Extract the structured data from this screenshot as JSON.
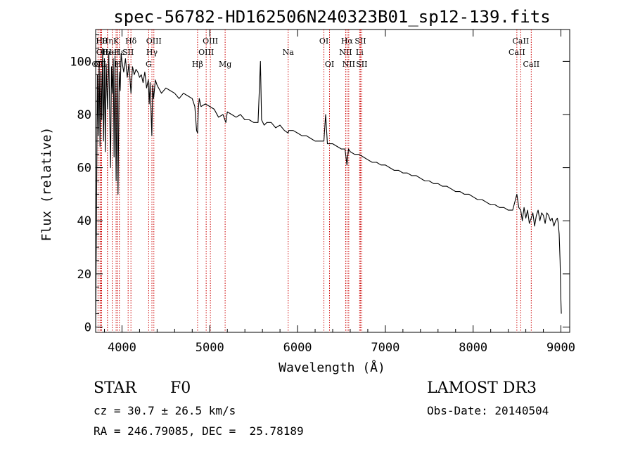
{
  "chart_data": {
    "type": "line",
    "title": "spec-56782-HD162506N240323B01_sp12-139.fits",
    "xlabel": "Wavelength (Å)",
    "ylabel": "Flux (relative)",
    "xlim": [
      3700,
      9100
    ],
    "ylim": [
      -2,
      112
    ],
    "xticks": [
      4000,
      5000,
      6000,
      7000,
      8000,
      9000
    ],
    "yticks": [
      0,
      20,
      40,
      60,
      80,
      100
    ],
    "series": [
      {
        "name": "spectrum",
        "x": [
          3700,
          3710,
          3720,
          3730,
          3740,
          3750,
          3760,
          3770,
          3780,
          3790,
          3800,
          3810,
          3820,
          3835,
          3850,
          3870,
          3880,
          3890,
          3900,
          3910,
          3920,
          3933,
          3945,
          3955,
          3968,
          3980,
          3990,
          4000,
          4020,
          4040,
          4060,
          4080,
          4102,
          4120,
          4140,
          4160,
          4180,
          4200,
          4220,
          4240,
          4260,
          4280,
          4300,
          4310,
          4320,
          4340,
          4350,
          4360,
          4380,
          4400,
          4450,
          4500,
          4550,
          4600,
          4650,
          4700,
          4750,
          4800,
          4830,
          4850,
          4861,
          4870,
          4880,
          4900,
          4950,
          5000,
          5050,
          5100,
          5150,
          5183,
          5200,
          5250,
          5300,
          5350,
          5400,
          5450,
          5500,
          5550,
          5577,
          5590,
          5620,
          5650,
          5700,
          5750,
          5800,
          5850,
          5893,
          5900,
          5950,
          6000,
          6050,
          6100,
          6150,
          6200,
          6250,
          6300,
          6320,
          6340,
          6400,
          6450,
          6500,
          6540,
          6563,
          6580,
          6600,
          6650,
          6700,
          6750,
          6800,
          6850,
          6900,
          6950,
          7000,
          7050,
          7100,
          7150,
          7200,
          7250,
          7300,
          7350,
          7400,
          7450,
          7500,
          7550,
          7600,
          7650,
          7700,
          7750,
          7800,
          7850,
          7900,
          7950,
          8000,
          8050,
          8100,
          8150,
          8200,
          8250,
          8300,
          8350,
          8400,
          8450,
          8498,
          8520,
          8542,
          8560,
          8580,
          8600,
          8620,
          8640,
          8662,
          8680,
          8700,
          8720,
          8740,
          8760,
          8780,
          8800,
          8820,
          8840,
          8860,
          8880,
          8900,
          8920,
          8940,
          8960,
          8970,
          8980,
          8990,
          9000,
          9005
        ],
        "y": [
          0,
          43,
          95,
          72,
          100,
          68,
          96,
          78,
          105,
          70,
          101,
          66,
          99,
          82,
          103,
          60,
          98,
          88,
          101,
          64,
          102,
          55,
          100,
          50,
          96,
          89,
          103,
          100,
          96,
          101,
          94,
          99,
          88,
          98,
          95,
          97,
          96,
          94,
          95,
          92,
          96,
          90,
          93,
          84,
          92,
          72,
          91,
          86,
          93,
          91,
          88,
          90,
          89,
          88,
          86,
          88,
          87,
          86,
          83,
          74,
          73,
          82,
          86,
          83,
          84,
          83,
          82,
          79,
          80,
          77,
          81,
          80,
          79,
          80,
          78,
          78,
          77,
          77,
          100,
          78,
          76,
          77,
          77,
          75,
          76,
          74,
          73,
          74,
          74,
          73,
          72,
          72,
          71,
          70,
          70,
          70,
          80,
          69,
          69,
          68,
          67,
          67,
          61,
          67,
          66,
          65,
          65,
          64,
          63,
          62,
          62,
          61,
          61,
          60,
          59,
          59,
          58,
          58,
          57,
          57,
          56,
          55,
          55,
          54,
          54,
          53,
          53,
          52,
          51,
          51,
          50,
          50,
          49,
          48,
          48,
          47,
          46,
          46,
          45,
          45,
          44,
          44,
          50,
          45,
          44,
          40,
          45,
          41,
          44,
          39,
          41,
          43,
          38,
          42,
          44,
          40,
          43,
          42,
          39,
          43,
          42,
          40,
          41,
          38,
          40,
          41,
          39,
          35,
          25,
          10,
          5
        ]
      }
    ],
    "lines": [
      {
        "x": 3727,
        "row": 2,
        "label": "OII"
      },
      {
        "x": 3750,
        "row": 2,
        "label": "OII"
      },
      {
        "x": 3768,
        "row": 0,
        "label": "Hθ"
      },
      {
        "x": 3834,
        "row": 0,
        "label": "Hη"
      },
      {
        "x": 3760,
        "row": 1,
        "label": "OI"
      },
      {
        "x": 3835,
        "row": 1,
        "label": "He"
      },
      {
        "x": 3889,
        "row": 1,
        "label": "HeI"
      },
      {
        "x": 3933,
        "row": 0,
        "label": "K"
      },
      {
        "x": 3950,
        "row": 2,
        "label": "H"
      },
      {
        "x": 3970,
        "row": 1,
        "label": "Hε"
      },
      {
        "x": 4070,
        "row": 1,
        "label": "SII"
      },
      {
        "x": 4102,
        "row": 0,
        "label": "Hδ"
      },
      {
        "x": 4304,
        "row": 2,
        "label": "G"
      },
      {
        "x": 4341,
        "row": 1,
        "label": "Hγ"
      },
      {
        "x": 4363,
        "row": 0,
        "label": "OIII"
      },
      {
        "x": 4861,
        "row": 2,
        "label": "Hβ"
      },
      {
        "x": 4959,
        "row": 1,
        "label": "OIII"
      },
      {
        "x": 5007,
        "row": 0,
        "label": "OIII"
      },
      {
        "x": 5175,
        "row": 2,
        "label": "Mg"
      },
      {
        "x": 5893,
        "row": 1,
        "label": "Na"
      },
      {
        "x": 6300,
        "row": 0,
        "label": "OI"
      },
      {
        "x": 6364,
        "row": 2,
        "label": "OI"
      },
      {
        "x": 6548,
        "row": 1,
        "label": "NII"
      },
      {
        "x": 6563,
        "row": 0,
        "label": "Hα"
      },
      {
        "x": 6583,
        "row": 2,
        "label": "NII"
      },
      {
        "x": 6707,
        "row": 1,
        "label": "Li"
      },
      {
        "x": 6716,
        "row": 0,
        "label": "SII"
      },
      {
        "x": 6731,
        "row": 2,
        "label": "SII"
      },
      {
        "x": 8498,
        "row": 1,
        "label": "CaII"
      },
      {
        "x": 8542,
        "row": 0,
        "label": "CaII"
      },
      {
        "x": 8662,
        "row": 2,
        "label": "CaII"
      }
    ]
  },
  "info": {
    "class": "STAR",
    "subclass": "F0",
    "survey": "LAMOST DR3",
    "cz": "cz = 30.7 ± 26.5 km/s",
    "obs_date": "Obs-Date: 20140504",
    "coords": "RA = 246.79085, DEC =  25.78189"
  }
}
